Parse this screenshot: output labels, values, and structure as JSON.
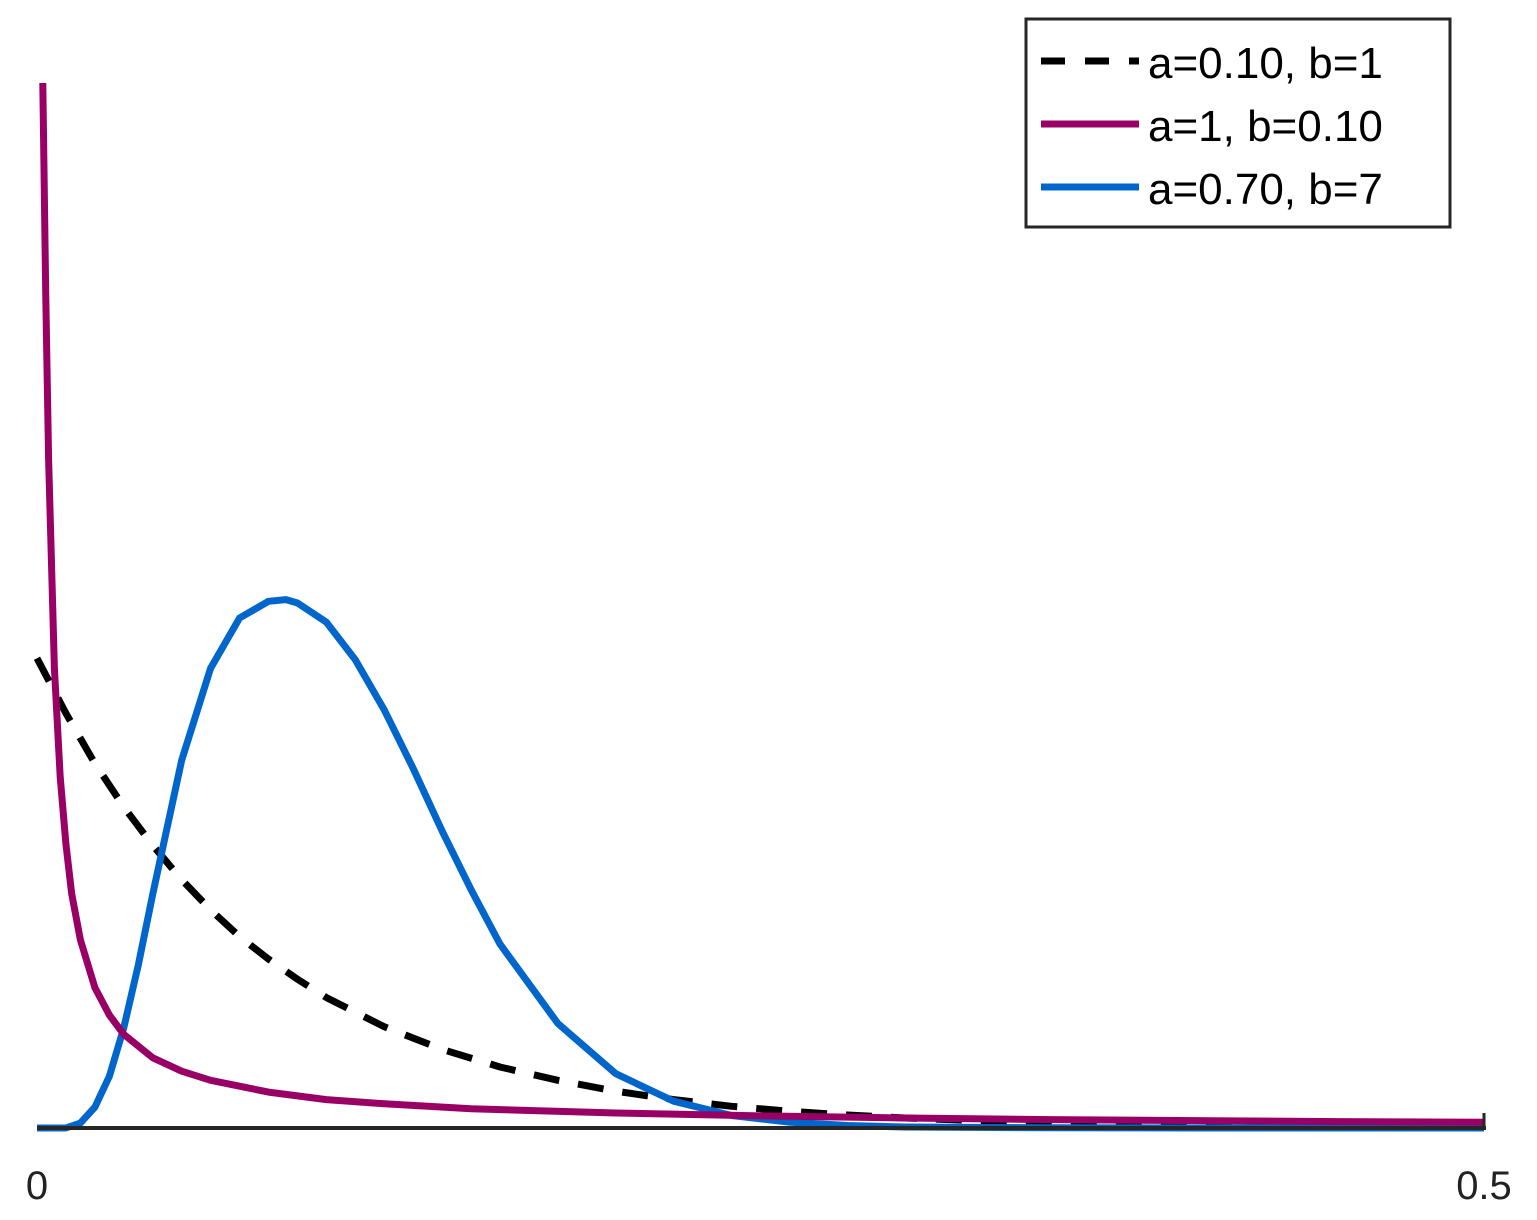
{
  "chart_data": {
    "type": "line",
    "title": "",
    "xlabel": "",
    "ylabel": "",
    "xlim": [
      0,
      0.5
    ],
    "ylim": [
      0,
      12.5
    ],
    "x_ticks": [
      {
        "value": 0,
        "label": "0"
      },
      {
        "value": 0.5,
        "label": "0.5"
      }
    ],
    "grid": false,
    "y_axis_visible": false,
    "legend": {
      "position": "top-right",
      "boxed": true
    },
    "series": [
      {
        "name": "a=0.10, b=1",
        "color": "#000000",
        "style": "dashed",
        "x": [
          0,
          0.01,
          0.02,
          0.03,
          0.04,
          0.05,
          0.06,
          0.07,
          0.08,
          0.09,
          0.1,
          0.12,
          0.14,
          0.16,
          0.18,
          0.2,
          0.22,
          0.24,
          0.26,
          0.28,
          0.3,
          0.32,
          0.34,
          0.36,
          0.38,
          0.4,
          0.42,
          0.44,
          0.46,
          0.48,
          0.5
        ],
        "y": [
          5.62,
          4.96,
          4.36,
          3.84,
          3.38,
          2.97,
          2.61,
          2.29,
          2.02,
          1.78,
          1.56,
          1.21,
          0.94,
          0.73,
          0.57,
          0.44,
          0.34,
          0.26,
          0.2,
          0.155,
          0.12,
          0.094,
          0.073,
          0.057,
          0.044,
          0.034,
          0.026,
          0.02,
          0.015,
          0.011,
          0.008
        ]
      },
      {
        "name": "a=1, b=0.10",
        "color": "#990066",
        "style": "solid",
        "x": [
          0.002,
          0.003,
          0.004,
          0.006,
          0.008,
          0.01,
          0.012,
          0.015,
          0.02,
          0.025,
          0.03,
          0.04,
          0.05,
          0.06,
          0.08,
          0.1,
          0.12,
          0.15,
          0.2,
          0.25,
          0.3,
          0.35,
          0.4,
          0.45,
          0.5
        ],
        "y": [
          12.5,
          10.0,
          8.0,
          5.5,
          4.2,
          3.4,
          2.8,
          2.25,
          1.68,
          1.35,
          1.12,
          0.84,
          0.68,
          0.57,
          0.43,
          0.34,
          0.29,
          0.23,
          0.18,
          0.145,
          0.12,
          0.1,
          0.088,
          0.077,
          0.068
        ]
      },
      {
        "name": "a=0.70, b=7",
        "color": "#0066cc",
        "style": "solid",
        "x": [
          0,
          0.01,
          0.015,
          0.02,
          0.025,
          0.03,
          0.035,
          0.04,
          0.05,
          0.06,
          0.07,
          0.08,
          0.086,
          0.09,
          0.1,
          0.11,
          0.12,
          0.13,
          0.14,
          0.15,
          0.16,
          0.18,
          0.2,
          0.22,
          0.24,
          0.26,
          0.28,
          0.3,
          0.35,
          0.4,
          0.45,
          0.5
        ],
        "y": [
          0,
          0,
          0.06,
          0.25,
          0.62,
          1.2,
          1.95,
          2.8,
          4.4,
          5.5,
          6.1,
          6.3,
          6.32,
          6.28,
          6.05,
          5.6,
          5.0,
          4.3,
          3.55,
          2.85,
          2.2,
          1.25,
          0.65,
          0.32,
          0.15,
          0.07,
          0.03,
          0.012,
          0.002,
          0,
          0,
          0
        ]
      }
    ]
  }
}
